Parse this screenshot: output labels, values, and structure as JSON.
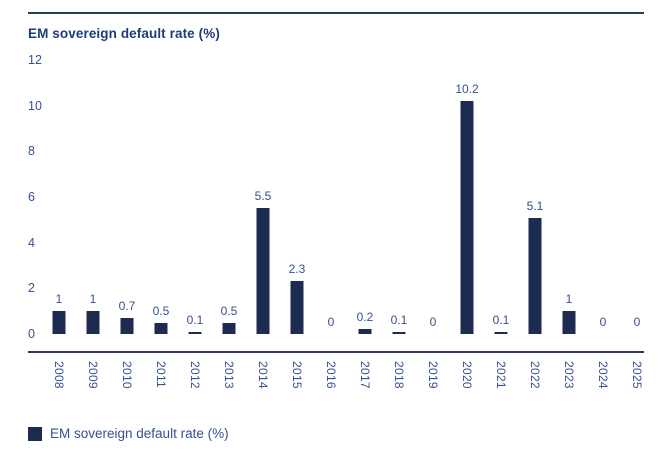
{
  "chart": {
    "title": "EM sovereign default rate (%)",
    "legend_label": "EM sovereign default rate (%)"
  },
  "chart_data": {
    "type": "bar",
    "title": "EM sovereign default rate (%)",
    "categories": [
      "2008",
      "2009",
      "2010",
      "2011",
      "2012",
      "2013",
      "2014",
      "2015",
      "2016",
      "2017",
      "2018",
      "2019",
      "2020",
      "2021",
      "2022",
      "2023",
      "2024",
      "2025"
    ],
    "values": [
      1,
      1,
      0.7,
      0.5,
      0.1,
      0.5,
      5.5,
      2.3,
      0,
      0.2,
      0.1,
      0,
      10.2,
      0.1,
      5.1,
      1,
      0,
      0
    ],
    "value_labels": [
      "1",
      "1",
      "0.7",
      "0.5",
      "0.1",
      "0.5",
      "5.5",
      "2.3",
      "0",
      "0.2",
      "0.1",
      "0",
      "10.2",
      "0.1",
      "5.1",
      "1",
      "0",
      "0"
    ],
    "xlabel": "",
    "ylabel": "",
    "ylim": [
      0,
      12
    ],
    "yticks": [
      0,
      2,
      4,
      6,
      8,
      10,
      12
    ],
    "grid": false,
    "value_labels_shown": true,
    "legend": [
      "EM sovereign default rate (%)"
    ],
    "legend_position": "bottom-left",
    "colors": {
      "bar": "#1d2b50",
      "rule_line": "#2b3a62",
      "title_text": "#1e3d78",
      "label_text": "#35518e",
      "background": "#ffffff"
    }
  }
}
